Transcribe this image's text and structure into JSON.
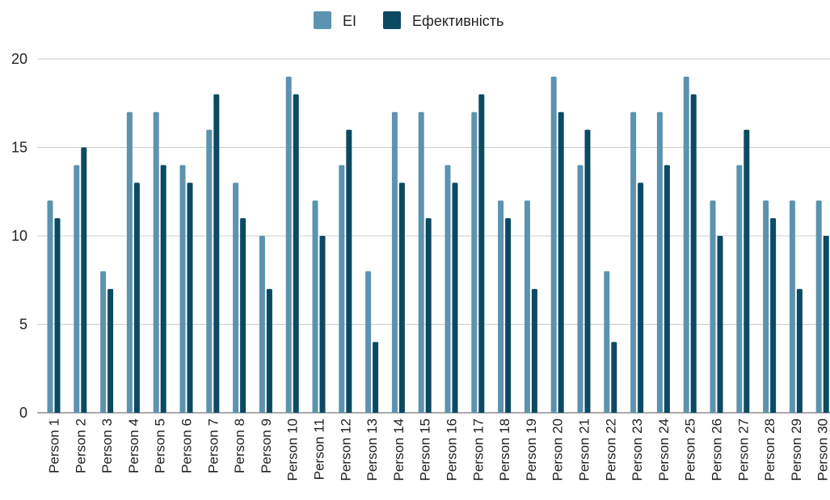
{
  "chart_data": {
    "type": "bar",
    "categories": [
      "Person 1",
      "Person 2",
      "Person 3",
      "Person 4",
      "Person 5",
      "Person 6",
      "Person 7",
      "Person 8",
      "Person 9",
      "Person 10",
      "Person 11",
      "Person 12",
      "Person 13",
      "Person 14",
      "Person 15",
      "Person 16",
      "Person 17",
      "Person 18",
      "Person 19",
      "Person 20",
      "Person 21",
      "Person 22",
      "Person 23",
      "Person 24",
      "Person 25",
      "Person 26",
      "Person 27",
      "Person 28",
      "Person 29",
      "Person 30"
    ],
    "series": [
      {
        "name": "EI",
        "color": "#5b93b0",
        "values": [
          12,
          14,
          8,
          17,
          17,
          14,
          16,
          13,
          10,
          19,
          12,
          14,
          8,
          17,
          17,
          14,
          17,
          12,
          12,
          19,
          14,
          8,
          17,
          17,
          19,
          12,
          14,
          12,
          12,
          12
        ]
      },
      {
        "name": "Ефективність",
        "color": "#0b4a62",
        "values": [
          11,
          15,
          7,
          13,
          14,
          13,
          18,
          11,
          7,
          18,
          10,
          16,
          4,
          13,
          11,
          13,
          18,
          11,
          7,
          17,
          16,
          4,
          13,
          14,
          18,
          10,
          16,
          11,
          7,
          10
        ]
      }
    ],
    "title": "",
    "xlabel": "",
    "ylabel": "",
    "ylim": [
      0,
      20
    ],
    "yticks": [
      0,
      5,
      10,
      15,
      20
    ],
    "grid": true,
    "legend_position": "top-center"
  }
}
